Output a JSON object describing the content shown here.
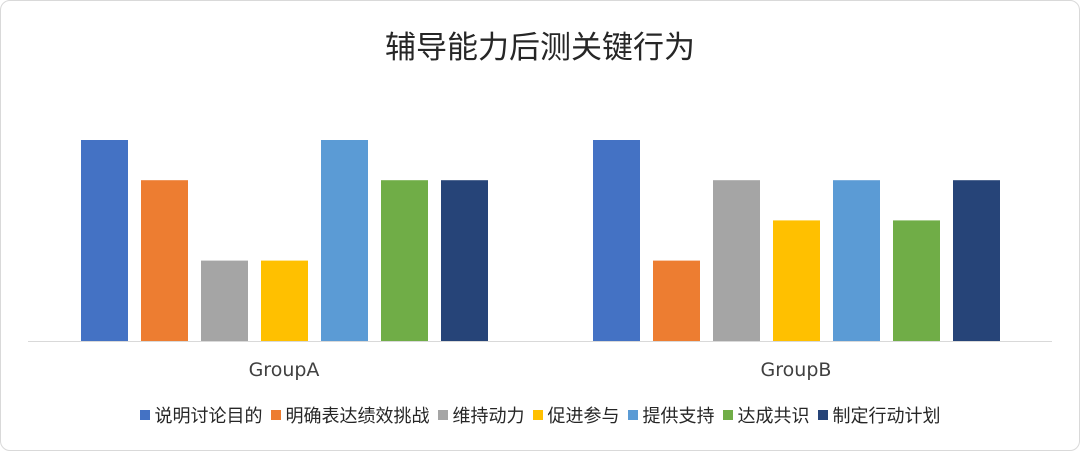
{
  "chart_data": {
    "type": "bar",
    "title": "辅导能力后测关键行为",
    "categories": [
      "GroupA",
      "GroupB"
    ],
    "series": [
      {
        "name": "说明讨论目的",
        "color": "#4472C4",
        "values": [
          5,
          5
        ]
      },
      {
        "name": "明确表达绩效挑战",
        "color": "#ED7D31",
        "values": [
          4,
          2
        ]
      },
      {
        "name": "维持动力",
        "color": "#A5A5A5",
        "values": [
          2,
          4
        ]
      },
      {
        "name": "促进参与",
        "color": "#FFC000",
        "values": [
          2,
          3
        ]
      },
      {
        "name": "提供支持",
        "color": "#5B9BD5",
        "values": [
          5,
          4
        ]
      },
      {
        "name": "达成共识",
        "color": "#70AD47",
        "values": [
          4,
          3
        ]
      },
      {
        "name": "制定行动计划",
        "color": "#264478",
        "values": [
          4,
          4
        ]
      }
    ],
    "ylim": [
      0,
      5
    ],
    "grid": false,
    "legend_position": "bottom"
  }
}
